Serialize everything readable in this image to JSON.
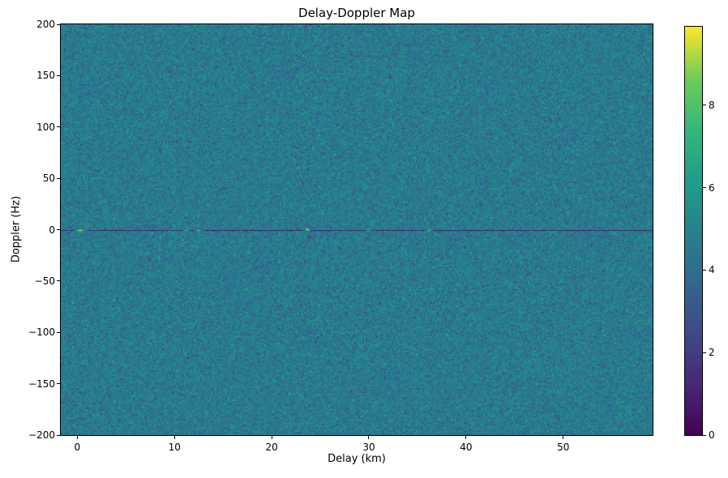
{
  "figure": {
    "background": "#ffffff"
  },
  "chart_data": {
    "type": "heatmap",
    "title": "Delay-Doppler Map",
    "xlabel": "Delay (km)",
    "ylabel": "Doppler (Hz)",
    "x_range_km": [
      -1.7,
      59.2
    ],
    "y_range_hz": [
      -200,
      200
    ],
    "x_ticks": [
      0,
      10,
      20,
      30,
      40,
      50
    ],
    "x_tick_labels": [
      "0",
      "10",
      "20",
      "30",
      "40",
      "50"
    ],
    "y_ticks": [
      -200,
      -150,
      -100,
      -50,
      0,
      50,
      100,
      150,
      200
    ],
    "y_tick_labels": [
      "−200",
      "−150",
      "−100",
      "−50",
      "0",
      "50",
      "100",
      "150",
      "200"
    ],
    "colormap": "viridis",
    "colormap_stops": [
      "#440154",
      "#482878",
      "#3e4989",
      "#31688e",
      "#26828e",
      "#1f9e89",
      "#35b779",
      "#6ece58",
      "#fde725"
    ],
    "value_range": [
      0,
      9.9
    ],
    "colorbar_ticks": [
      0,
      2,
      4,
      6,
      8
    ],
    "colorbar_tick_labels": [
      "0",
      "2",
      "4",
      "6",
      "8"
    ],
    "noise_floor": {
      "mean": 4.55,
      "std": 0.62
    },
    "zero_doppler_notch": {
      "doppler_hz": 0,
      "mean_value": 1.0,
      "description": "dark clutter-suppressed stripe across all delays at 0 Hz"
    },
    "echo_peaks": [
      {
        "delay_km": 0.2,
        "doppler_hz": 0,
        "value": 9.9,
        "width_km": 1.6
      },
      {
        "delay_km": 11.1,
        "doppler_hz": 0,
        "value": 7.6,
        "width_km": 0.9
      },
      {
        "delay_km": 12.4,
        "doppler_hz": 0,
        "value": 8.1,
        "width_km": 1.1
      },
      {
        "delay_km": 23.6,
        "doppler_hz": 1,
        "value": 9.6,
        "width_km": 0.9
      },
      {
        "delay_km": 29.9,
        "doppler_hz": 1,
        "value": 7.2,
        "width_km": 0.8
      },
      {
        "delay_km": 36.1,
        "doppler_hz": 0,
        "value": 8.4,
        "width_km": 0.9
      }
    ],
    "dips": [
      {
        "delay_km": 23.8,
        "doppler_hz": -7,
        "value": 1.8,
        "width_km": 0.5
      }
    ]
  }
}
